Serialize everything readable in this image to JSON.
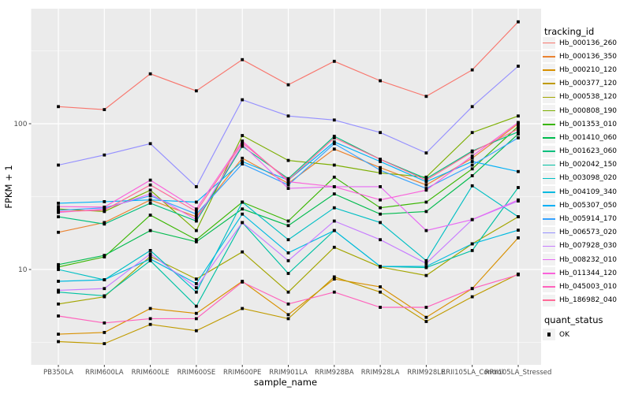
{
  "figure": {
    "background": "#FFFFFF",
    "panel_background": "#EBEBEB",
    "grid_color": "#FFFFFF",
    "tick_color": "#333333",
    "tick_label_color": "#4D4D4D",
    "axis_title_color": "#000000",
    "marker_color": "#000000",
    "legend_key_background": "#F2F2F2"
  },
  "axes": {
    "x_title": "sample_name",
    "y_title": "FPKM + 1",
    "y_tick_labels": [
      "100",
      "10"
    ]
  },
  "legend": {
    "tracking_title": "tracking_id",
    "quant_title": "quant_status",
    "quant_ok_label": "OK"
  },
  "chart_data": {
    "type": "line",
    "title": "",
    "xlabel": "sample_name",
    "ylabel": "FPKM + 1",
    "y_scale": "log10",
    "y_ticks": [
      100,
      10
    ],
    "y_minor_ticks": [
      316.23,
      31.623,
      3.1623
    ],
    "ylim_approx": [
      2.2,
      620
    ],
    "grid": "white major/minor on gray panel",
    "legend_position": "right",
    "marker": "black-square",
    "quant_status": {
      "title": "quant_status",
      "items": [
        "OK"
      ]
    },
    "categories": [
      "PB350LA",
      "RRIM600LA",
      "RRIM600LE",
      "RRIM600SE",
      "RRIM600PE",
      "RRIM901LA",
      "RRIM928BA",
      "RRIM928LA",
      "RRIM928LE",
      "RRII105LA_Control",
      "RRII105LA_Stressed"
    ],
    "series": [
      {
        "name": "Hb_000136_260",
        "color": "#F8766D",
        "values": [
          131,
          125,
          220,
          168,
          275,
          185,
          268,
          197,
          154,
          234,
          500
        ]
      },
      {
        "name": "Hb_000136_350",
        "color": "#EA8331",
        "values": [
          18,
          21,
          30,
          23,
          58,
          39,
          67,
          50,
          38,
          58,
          100
        ]
      },
      {
        "name": "Hb_000210_120",
        "color": "#D89000",
        "values": [
          3.6,
          3.7,
          5.4,
          5.0,
          8.3,
          4.9,
          8.6,
          7.6,
          4.7,
          7.4,
          16.5
        ]
      },
      {
        "name": "Hb_000377_120",
        "color": "#C09B00",
        "values": [
          3.2,
          3.1,
          4.2,
          3.8,
          5.4,
          4.6,
          8.9,
          7.0,
          4.4,
          6.5,
          9.3
        ]
      },
      {
        "name": "Hb_000538_120",
        "color": "#A3A500",
        "values": [
          5.8,
          6.5,
          12.3,
          8.6,
          13.2,
          7.0,
          14.2,
          10.4,
          9.1,
          15,
          23
        ]
      },
      {
        "name": "Hb_000808_190",
        "color": "#7CAE00",
        "values": [
          26,
          25,
          35,
          18.5,
          83,
          56,
          52,
          46,
          43,
          87,
          113
        ]
      },
      {
        "name": "Hb_001353_010",
        "color": "#39B600",
        "values": [
          10.4,
          12.2,
          23.6,
          16,
          29,
          21.5,
          43,
          26.5,
          29,
          49,
          96
        ]
      },
      {
        "name": "Hb_001410_060",
        "color": "#00BB4E",
        "values": [
          10.8,
          12.5,
          18.5,
          15.5,
          26,
          20,
          33,
          24,
          25,
          44,
          85
        ]
      },
      {
        "name": "Hb_001623_060",
        "color": "#00BF7D",
        "values": [
          23,
          20.5,
          28.5,
          21.5,
          70,
          42,
          82,
          57,
          42,
          65,
          88
        ]
      },
      {
        "name": "Hb_002042_150",
        "color": "#00C1A3",
        "values": [
          7.0,
          6.6,
          11.5,
          5.6,
          21,
          9.4,
          18.5,
          10.5,
          10.3,
          13.5,
          36.5
        ]
      },
      {
        "name": "Hb_003098_020",
        "color": "#00BFC4",
        "values": [
          10,
          8.5,
          13.5,
          7.0,
          29,
          16,
          26.5,
          21,
          11.5,
          37.5,
          23
        ]
      },
      {
        "name": "Hb_004109_340",
        "color": "#00BAE0",
        "values": [
          8.3,
          8.5,
          11.8,
          8.0,
          24,
          13,
          18.5,
          10.5,
          10.5,
          15,
          18.6
        ]
      },
      {
        "name": "Hb_005307_050",
        "color": "#00B0F6",
        "values": [
          28.5,
          29.2,
          30,
          29,
          55,
          41,
          75,
          55,
          40,
          55,
          47
        ]
      },
      {
        "name": "Hb_005914_170",
        "color": "#35A2FF",
        "values": [
          25.5,
          26.5,
          32,
          24,
          53,
          38,
          73,
          48,
          36,
          52,
          80
        ]
      },
      {
        "name": "Hb_006573_020",
        "color": "#9590FF",
        "values": [
          52,
          61,
          73,
          37,
          146,
          113,
          106,
          87,
          63,
          131,
          248
        ]
      },
      {
        "name": "Hb_007928_030",
        "color": "#C77CFF",
        "values": [
          7.2,
          7.4,
          12.8,
          7.5,
          21,
          11.5,
          21.5,
          16,
          11,
          22,
          29.5
        ]
      },
      {
        "name": "Hb_008232_010",
        "color": "#E76BF3",
        "values": [
          24.6,
          26,
          33,
          22,
          72,
          36,
          37,
          37,
          18.5,
          22,
          30
        ]
      },
      {
        "name": "Hb_011344_120",
        "color": "#FA62DB",
        "values": [
          27,
          26.8,
          41,
          26,
          76,
          40,
          37,
          30,
          35,
          60,
          102
        ]
      },
      {
        "name": "Hb_045003_010",
        "color": "#FF62BC",
        "values": [
          4.8,
          4.3,
          4.6,
          4.6,
          8.2,
          5.8,
          7.0,
          5.5,
          5.5,
          7.4,
          9.2
        ]
      },
      {
        "name": "Hb_186982_040",
        "color": "#FF6A98",
        "values": [
          25,
          25.5,
          38,
          25,
          74,
          41,
          80,
          57,
          41,
          64,
          92
        ]
      }
    ]
  }
}
